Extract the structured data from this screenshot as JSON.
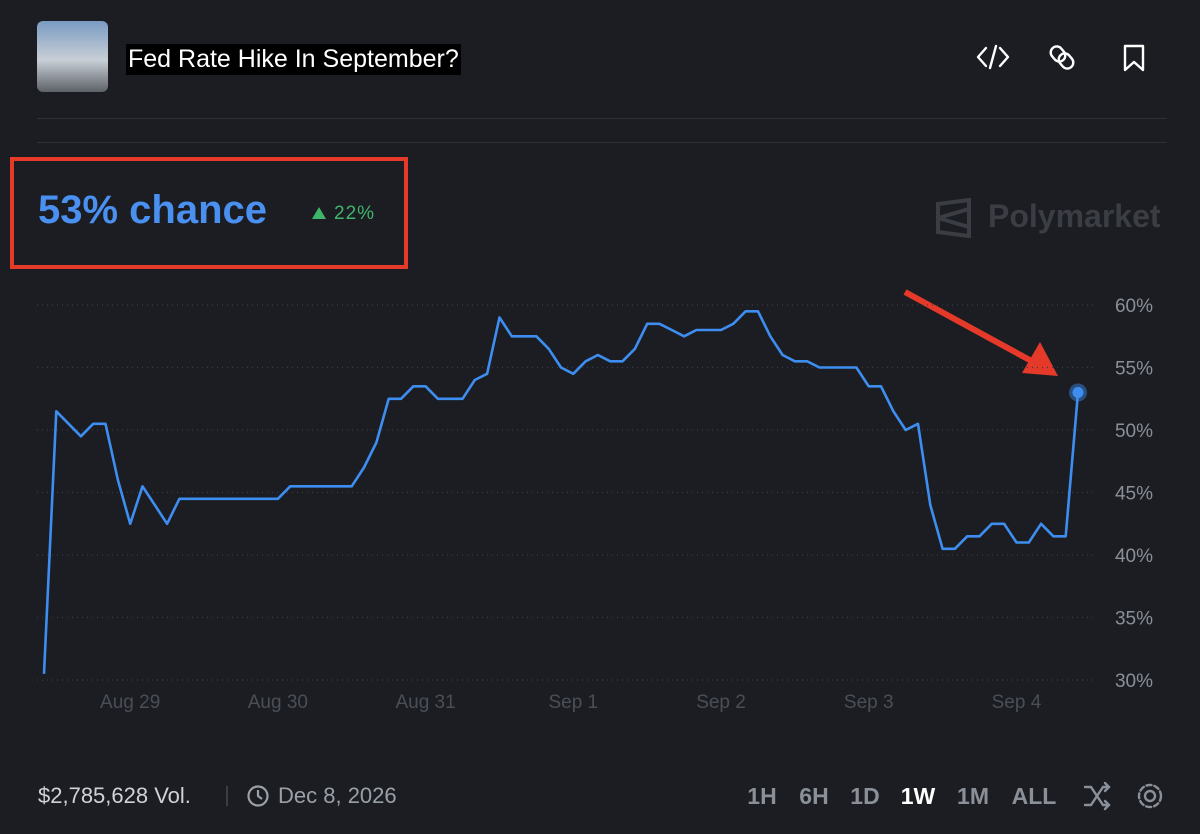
{
  "header": {
    "title": "Fed Rate Hike In September?"
  },
  "chance": "53% chance",
  "change": "22%",
  "watermark": "Polymarket",
  "chart_data": {
    "type": "line",
    "categories": [
      null,
      null,
      null,
      null,
      null,
      null,
      null,
      "Aug 29",
      null,
      null,
      null,
      null,
      null,
      null,
      null,
      null,
      null,
      null,
      null,
      "Aug 30",
      null,
      null,
      null,
      null,
      null,
      null,
      null,
      null,
      null,
      null,
      null,
      "Aug 31",
      null,
      null,
      null,
      null,
      null,
      null,
      null,
      null,
      null,
      null,
      null,
      "Sep 1",
      null,
      null,
      null,
      null,
      null,
      null,
      null,
      null,
      null,
      null,
      null,
      "Sep 2",
      null,
      null,
      null,
      null,
      null,
      null,
      null,
      null,
      null,
      null,
      null,
      "Sep 3",
      null,
      null,
      null,
      null,
      null,
      null,
      null,
      null,
      null,
      null,
      null,
      "Sep 4",
      null,
      null,
      null,
      null,
      null
    ],
    "series": [
      {
        "color": "#3d8ef0",
        "values": [
          30.5,
          51.5,
          50.5,
          49.5,
          50.5,
          50.5,
          46,
          42.5,
          45.5,
          44,
          42.5,
          44.5,
          44.5,
          44.5,
          44.5,
          44.5,
          44.5,
          44.5,
          44.5,
          44.5,
          45.5,
          45.5,
          45.5,
          45.5,
          45.5,
          45.5,
          47,
          49,
          52.5,
          52.5,
          53.5,
          53.5,
          52.5,
          52.5,
          52.5,
          54,
          54.5,
          59,
          57.5,
          57.5,
          57.5,
          56.5,
          55,
          54.5,
          55.5,
          56,
          55.5,
          55.5,
          56.5,
          58.5,
          58.5,
          58,
          57.5,
          58,
          58,
          58,
          58.5,
          59.5,
          59.5,
          57.5,
          56,
          55.5,
          55.5,
          55,
          55,
          55,
          55,
          53.5,
          53.5,
          51.5,
          50,
          50.5,
          44,
          40.5,
          40.5,
          41.5,
          41.5,
          42.5,
          42.5,
          41,
          41,
          42.5,
          41.5,
          41.5,
          53
        ]
      }
    ],
    "ylim": [
      30,
      60
    ],
    "yticks": [
      {
        "value": 30,
        "label": "30%"
      },
      {
        "value": 35,
        "label": "35%"
      },
      {
        "value": 40,
        "label": "40%"
      },
      {
        "value": 45,
        "label": "45%"
      },
      {
        "value": 50,
        "label": "50%"
      },
      {
        "value": 55,
        "label": "55%"
      },
      {
        "value": 60,
        "label": "60%"
      }
    ],
    "grid": true
  },
  "footer": {
    "volume": "$2,785,628 Vol.",
    "end_date": "Dec 8, 2026",
    "ranges": [
      "1H",
      "6H",
      "1D",
      "1W",
      "1M",
      "ALL"
    ]
  }
}
